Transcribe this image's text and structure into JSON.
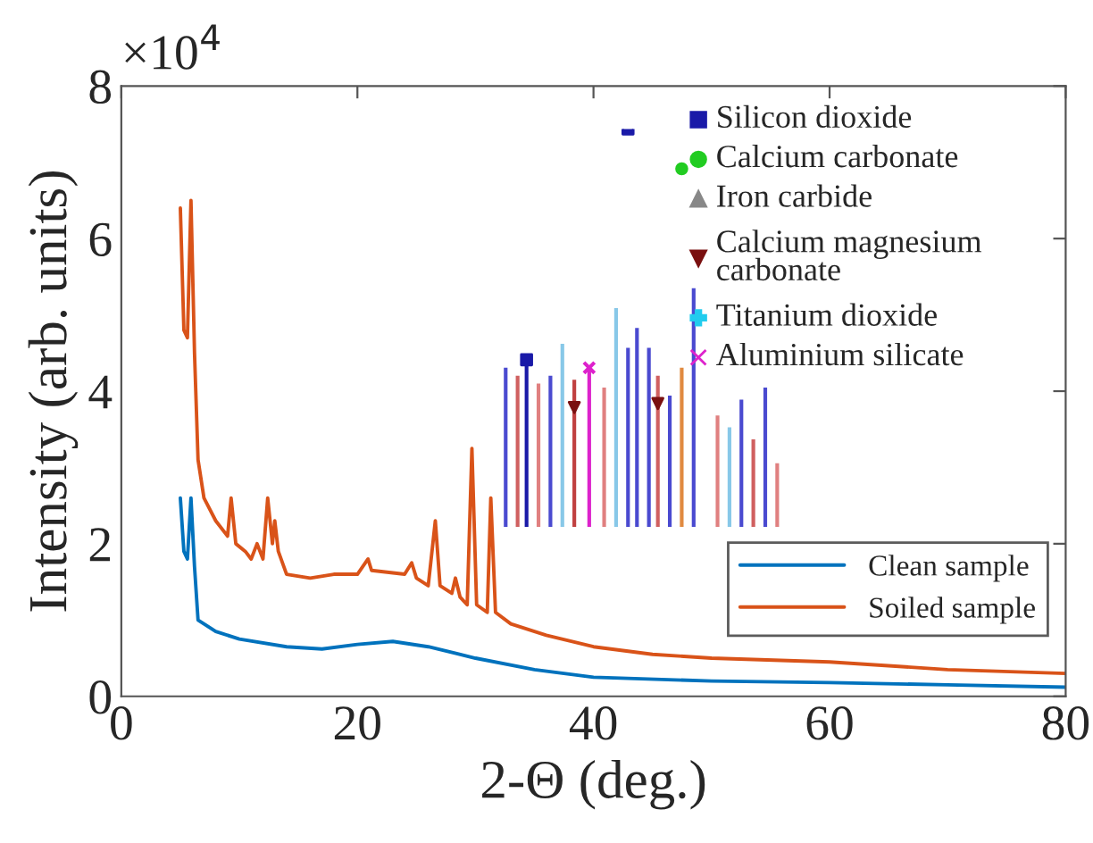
{
  "chart_data": [
    {
      "type": "line",
      "xlabel": "2-Θ (deg.)",
      "ylabel": "Intensity (arb. units)",
      "annotations": [
        "×10$^{4}$"
      ],
      "xlim": [
        0,
        80
      ],
      "xticks": [
        0,
        20,
        40,
        60,
        80
      ],
      "ylim": [
        0,
        8
      ],
      "yticks": [
        0,
        2,
        4,
        6,
        8
      ],
      "grid": false,
      "legend": "bottom right",
      "series": [
        {
          "name": "Clean sample",
          "color": "#0072bd",
          "x": [
            5,
            5.3,
            5.6,
            5.9,
            6.2,
            6.5,
            8,
            10,
            14,
            17,
            20,
            23,
            26,
            30,
            35,
            40,
            50,
            60,
            70,
            80
          ],
          "values": [
            2.6,
            1.9,
            1.8,
            2.6,
            1.7,
            1.0,
            0.85,
            0.75,
            0.65,
            0.62,
            0.68,
            0.72,
            0.65,
            0.5,
            0.35,
            0.25,
            0.2,
            0.18,
            0.15,
            0.12
          ]
        },
        {
          "name": "Soiled sample",
          "color": "#d95319",
          "x": [
            5,
            5.3,
            5.6,
            5.9,
            6.2,
            6.5,
            7,
            8,
            9,
            9.3,
            9.7,
            10.5,
            11,
            11.5,
            12,
            12.4,
            12.8,
            13,
            13.3,
            14,
            16,
            18,
            20,
            20.9,
            21.2,
            24,
            24.6,
            25,
            26,
            26.6,
            27,
            28,
            28.3,
            28.7,
            29.3,
            29.7,
            30.1,
            31,
            31.3,
            31.7,
            33,
            36,
            40,
            45,
            50,
            60,
            70,
            80
          ],
          "values": [
            6.4,
            4.8,
            4.7,
            6.5,
            4.5,
            3.1,
            2.6,
            2.3,
            2.1,
            2.6,
            2.0,
            1.9,
            1.8,
            2.0,
            1.8,
            2.6,
            2.0,
            2.3,
            1.9,
            1.6,
            1.55,
            1.6,
            1.6,
            1.8,
            1.65,
            1.6,
            1.75,
            1.55,
            1.45,
            2.3,
            1.45,
            1.35,
            1.55,
            1.3,
            1.2,
            3.25,
            1.2,
            1.1,
            2.6,
            1.1,
            0.95,
            0.8,
            0.65,
            0.55,
            0.5,
            0.45,
            0.35,
            0.3
          ]
        }
      ]
    },
    {
      "type": "other",
      "annotations": [
        "Silicon dioxide",
        "Calcium carbonate",
        "Iron carbide",
        "Calcium magnesium\ncarbonate",
        "Titanium dioxide",
        "Aluminium silicate"
      ]
    }
  ]
}
